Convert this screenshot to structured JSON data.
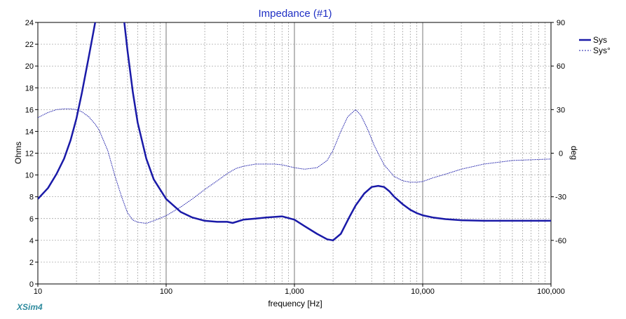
{
  "chart_data": {
    "type": "line",
    "title": "Impedance (#1)",
    "xlabel": "frequency [Hz]",
    "ylabel": "Ohms",
    "y2label": "deg",
    "xscale": "log",
    "xlim": [
      10,
      100000
    ],
    "ylim": [
      0,
      24
    ],
    "y2lim": [
      -90,
      90
    ],
    "x_ticks": [
      10,
      100,
      1000,
      10000,
      100000
    ],
    "x_tick_labels": [
      "10",
      "100",
      "1,000",
      "10,000",
      "100,000"
    ],
    "y_ticks": [
      0,
      2,
      4,
      6,
      8,
      10,
      12,
      14,
      16,
      18,
      20,
      22,
      24
    ],
    "y_tick_labels": [
      "0",
      "2",
      "4",
      "6",
      "8",
      "10",
      "12",
      "14",
      "16",
      "18",
      "20",
      "22",
      "24"
    ],
    "y2_ticks": [
      -60,
      -30,
      0,
      30,
      60,
      90
    ],
    "y2_tick_labels": [
      "-60",
      "-30",
      "0",
      "30",
      "60",
      "90"
    ],
    "grid": true,
    "legend_position": "top-right",
    "series": [
      {
        "name": "Sys",
        "axis": "left",
        "style": "solid",
        "color": "#1a1aa8",
        "x": [
          10,
          12,
          14,
          16,
          18,
          20,
          22,
          25,
          27,
          28.5,
          30,
          45,
          47,
          50,
          55,
          60,
          70,
          80,
          100,
          130,
          160,
          200,
          250,
          300,
          330,
          400,
          500,
          600,
          800,
          1000,
          1200,
          1500,
          1800,
          2000,
          2300,
          2700,
          3000,
          3500,
          4000,
          4500,
          5000,
          5500,
          6000,
          7000,
          8000,
          9000,
          10000,
          12000,
          15000,
          20000,
          30000,
          50000,
          100000
        ],
        "y": [
          7.8,
          8.8,
          10.1,
          11.5,
          13.2,
          15.2,
          17.5,
          20.9,
          23.0,
          24.5,
          26.0,
          26.0,
          24.2,
          21.4,
          17.6,
          14.8,
          11.5,
          9.6,
          7.8,
          6.6,
          6.1,
          5.8,
          5.7,
          5.7,
          5.6,
          5.9,
          6.0,
          6.1,
          6.2,
          5.9,
          5.3,
          4.6,
          4.1,
          4.0,
          4.6,
          6.2,
          7.2,
          8.3,
          8.9,
          9.0,
          8.9,
          8.5,
          8.0,
          7.3,
          6.8,
          6.5,
          6.3,
          6.1,
          5.95,
          5.85,
          5.8,
          5.8,
          5.8
        ]
      },
      {
        "name": "Sys°",
        "axis": "right",
        "style": "dotted",
        "color": "#1a1aa8",
        "x": [
          10,
          12,
          14,
          16,
          18,
          20,
          22,
          25,
          28,
          30,
          35,
          40,
          45,
          50,
          55,
          60,
          70,
          80,
          100,
          130,
          160,
          200,
          250,
          300,
          350,
          400,
          500,
          600,
          700,
          800,
          1000,
          1200,
          1500,
          1800,
          2000,
          2300,
          2600,
          3000,
          3300,
          3700,
          4200,
          5000,
          6000,
          7000,
          8000,
          9000,
          10000,
          12000,
          15000,
          20000,
          30000,
          50000,
          100000
        ],
        "y": [
          24.5,
          28,
          30,
          30.5,
          30.5,
          30,
          28.5,
          25,
          20,
          16,
          2,
          -16,
          -30,
          -41,
          -46,
          -47.5,
          -48.3,
          -46.5,
          -43,
          -37,
          -31.5,
          -25,
          -19,
          -14,
          -10.5,
          -9,
          -7.5,
          -7.5,
          -7.5,
          -8,
          -10,
          -11,
          -10,
          -5,
          2,
          15,
          25,
          30,
          26,
          17,
          5,
          -8,
          -16,
          -19,
          -20,
          -20,
          -19.5,
          -17,
          -14.5,
          -11,
          -7.5,
          -5,
          -4
        ]
      }
    ]
  },
  "brand": "XSim4"
}
